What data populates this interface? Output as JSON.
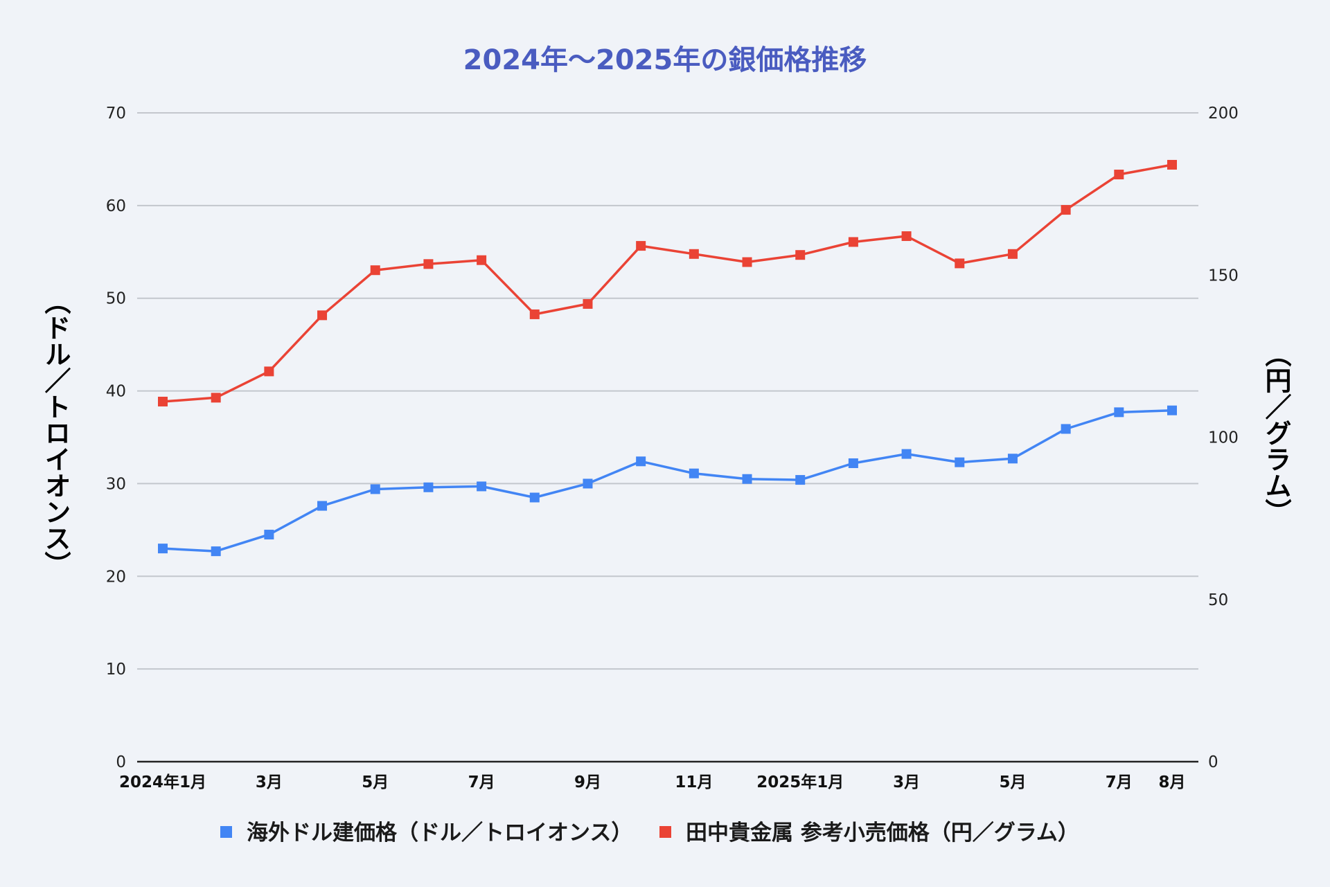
{
  "colors": {
    "background": "#f0f3f8",
    "title": "#4a5cc0",
    "grid": "#c3c7cd",
    "baseline": "#222222",
    "series_usd": "#4285f4",
    "series_jpy": "#ea4335"
  },
  "chart_data": {
    "type": "line",
    "title": "2024年～2025年の銀価格推移",
    "ylabel_left": "（ドル／トロイオンス）",
    "ylabel_right": "（円／グラム）",
    "y_left_range": [
      0,
      70
    ],
    "y_left_ticks": [
      0,
      10,
      20,
      30,
      40,
      50,
      60,
      70
    ],
    "y_right_range": [
      0,
      200
    ],
    "y_right_ticks": [
      0,
      50,
      100,
      150,
      200
    ],
    "grid": true,
    "legend_position": "bottom",
    "x": [
      "2024-01",
      "2024-02",
      "2024-03",
      "2024-04",
      "2024-05",
      "2024-06",
      "2024-07",
      "2024-08",
      "2024-09",
      "2024-10",
      "2024-11",
      "2024-12",
      "2025-01",
      "2025-02",
      "2025-03",
      "2025-04",
      "2025-05",
      "2025-06",
      "2025-07",
      "2025-08"
    ],
    "x_tick_labels": [
      {
        "index": 0,
        "label": "2024年1月"
      },
      {
        "index": 2,
        "label": "3月"
      },
      {
        "index": 4,
        "label": "5月"
      },
      {
        "index": 6,
        "label": "7月"
      },
      {
        "index": 8,
        "label": "9月"
      },
      {
        "index": 10,
        "label": "11月"
      },
      {
        "index": 12,
        "label": "2025年1月"
      },
      {
        "index": 14,
        "label": "3月"
      },
      {
        "index": 16,
        "label": "5月"
      },
      {
        "index": 18,
        "label": "7月"
      },
      {
        "index": 19,
        "label": "8月"
      }
    ],
    "series": [
      {
        "name": "海外ドル建価格（ドル／トロイオンス）",
        "axis": "left",
        "color_key": "series_usd",
        "values": [
          23.0,
          22.7,
          24.5,
          27.6,
          29.4,
          29.6,
          29.7,
          28.5,
          30.0,
          32.4,
          31.1,
          30.5,
          30.4,
          32.2,
          33.2,
          32.3,
          32.7,
          35.9,
          37.7,
          37.9
        ]
      },
      {
        "name": "田中貴金属 参考小売価格（円／グラム）",
        "axis": "right",
        "color_key": "series_jpy",
        "values": [
          111.0,
          112.2,
          120.3,
          137.6,
          151.5,
          153.4,
          154.6,
          137.9,
          141.1,
          159.0,
          156.5,
          154.0,
          156.2,
          160.2,
          162.0,
          153.6,
          156.5,
          170.1,
          181.0,
          184.0
        ]
      }
    ]
  }
}
